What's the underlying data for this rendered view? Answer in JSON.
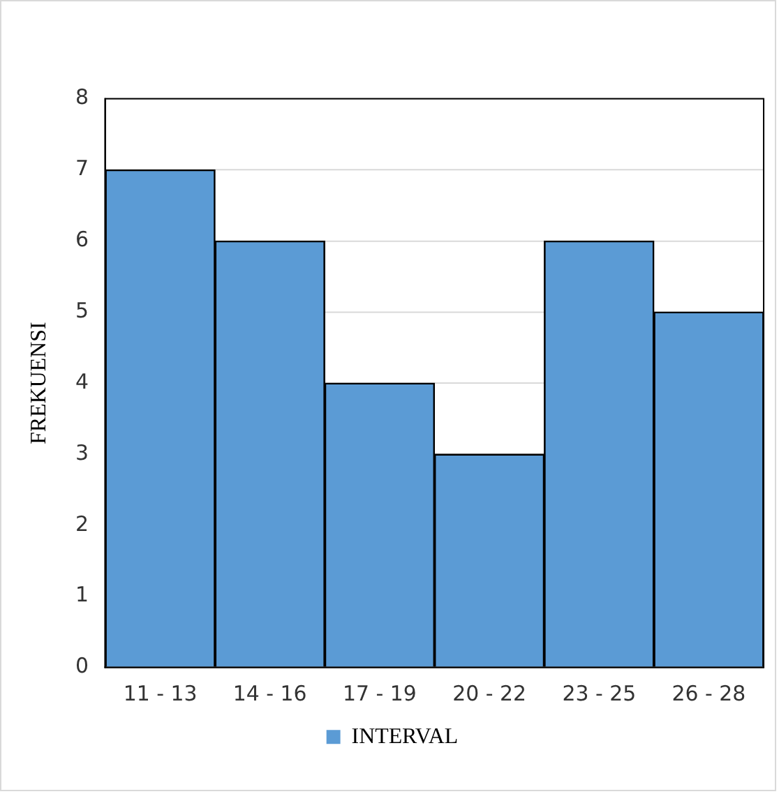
{
  "chart_data": {
    "type": "bar",
    "ylabel": "FREKUENSI",
    "categories": [
      "11 - 13",
      "14 - 16",
      "17 - 19",
      "20 - 22",
      "23 - 25",
      "26 - 28"
    ],
    "series": [
      {
        "name": "INTERVAL",
        "color": "#5b9bd5",
        "values": [
          7,
          6,
          4,
          3,
          6,
          5
        ]
      }
    ],
    "ylim": [
      0,
      8
    ],
    "yticks": [
      0,
      1,
      2,
      3,
      4,
      5,
      6,
      7,
      8
    ],
    "grid": "y",
    "legend": "bottom"
  }
}
